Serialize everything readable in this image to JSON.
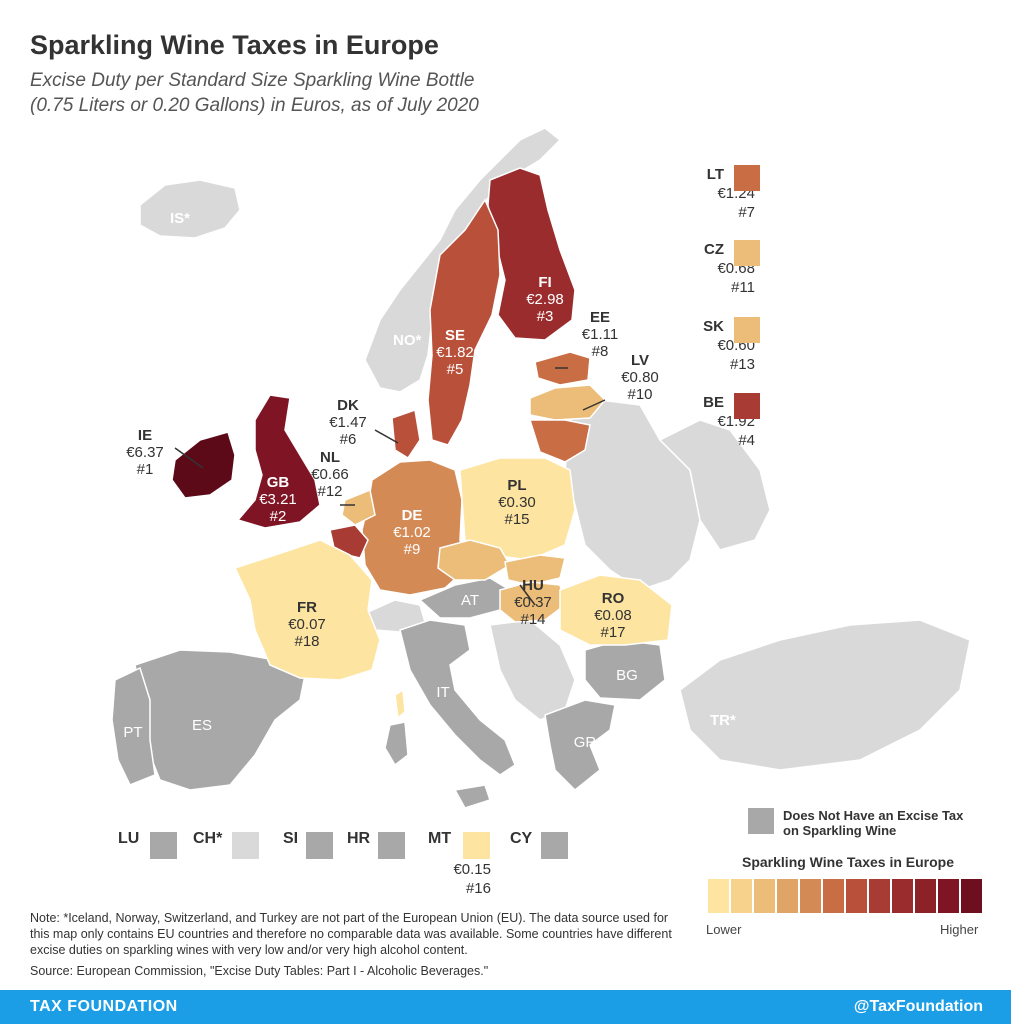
{
  "header": {
    "title": "Sparkling Wine Taxes in Europe",
    "subtitle_line1": "Excise Duty per Standard Size Sparkling Wine Bottle",
    "subtitle_line2": "(0.75 Liters or 0.20 Gallons) in Euros, as of July 2020"
  },
  "colors": {
    "no_tax": "#a8a8a8",
    "non_eu": "#d9d9d9",
    "scale": [
      "#fde4a0",
      "#f6d28c",
      "#ebbd79",
      "#dfa466",
      "#d38a55",
      "#c96d45",
      "#b8503a",
      "#a83b33",
      "#9b2c2d",
      "#8d2128",
      "#7f1524",
      "#6d0f1e",
      "#5c0a18"
    ]
  },
  "countries": [
    {
      "code": "IE",
      "value": "€6.37",
      "rank": "#1"
    },
    {
      "code": "GB",
      "value": "€3.21",
      "rank": "#2"
    },
    {
      "code": "FI",
      "value": "€2.98",
      "rank": "#3"
    },
    {
      "code": "SE",
      "value": "€1.82",
      "rank": "#5"
    },
    {
      "code": "DK",
      "value": "€1.47",
      "rank": "#6"
    },
    {
      "code": "EE",
      "value": "€1.11",
      "rank": "#8"
    },
    {
      "code": "DE",
      "value": "€1.02",
      "rank": "#9"
    },
    {
      "code": "LV",
      "value": "€0.80",
      "rank": "#10"
    },
    {
      "code": "NL",
      "value": "€0.66",
      "rank": "#12"
    },
    {
      "code": "HU",
      "value": "€0.37",
      "rank": "#14"
    },
    {
      "code": "PL",
      "value": "€0.30",
      "rank": "#15"
    },
    {
      "code": "RO",
      "value": "€0.08",
      "rank": "#17"
    },
    {
      "code": "FR",
      "value": "€0.07",
      "rank": "#18"
    }
  ],
  "no_tax_codes": [
    "AT",
    "IT",
    "ES",
    "PT",
    "BG",
    "GR"
  ],
  "non_eu_codes": [
    "IS*",
    "NO*",
    "TR*"
  ],
  "side_boxes": [
    {
      "code": "LT",
      "value": "€1.24",
      "rank": "#7",
      "color": "#c96d45"
    },
    {
      "code": "CZ",
      "value": "€0.68",
      "rank": "#11",
      "color": "#ebbd79"
    },
    {
      "code": "SK",
      "value": "€0.60",
      "rank": "#13",
      "color": "#ebbd79"
    },
    {
      "code": "BE",
      "value": "€1.92",
      "rank": "#4",
      "color": "#a83b33"
    }
  ],
  "small_states": [
    {
      "code": "LU",
      "color": "#a8a8a8"
    },
    {
      "code": "CH*",
      "color": "#d9d9d9"
    },
    {
      "code": "SI",
      "color": "#a8a8a8"
    },
    {
      "code": "HR",
      "color": "#a8a8a8"
    },
    {
      "code": "MT",
      "color": "#fde4a0",
      "value": "€0.15",
      "rank": "#16"
    },
    {
      "code": "CY",
      "color": "#a8a8a8"
    }
  ],
  "legend": {
    "no_tax_line1": "Does Not Have an Excise Tax",
    "no_tax_line2": "on Sparkling Wine",
    "title": "Sparkling Wine Taxes in Europe",
    "low": "Lower",
    "high": "Higher"
  },
  "note": "Note: *Iceland, Norway, Switzerland, and Turkey are not part of the European Union (EU). The data source used for this map only contains EU countries and therefore no comparable data was available. Some countries have different excise duties on sparkling wines with very low and/or very high alcohol content.",
  "source": "Source: European Commission, \"Excise Duty Tables: Part I - Alcoholic Beverages.\"",
  "footer": {
    "left": "TAX FOUNDATION",
    "right": "@TaxFoundation"
  }
}
